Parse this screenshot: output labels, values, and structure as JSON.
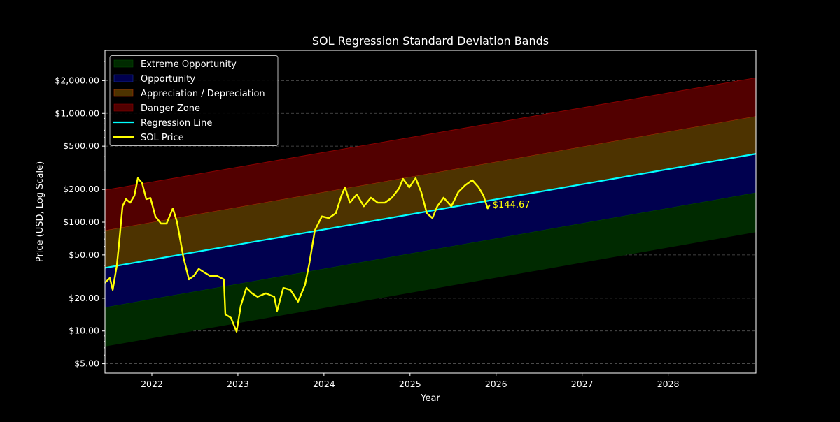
{
  "chart_data": {
    "type": "line",
    "title": "SOL Regression Standard Deviation Bands",
    "xlabel": "Year",
    "ylabel": "Price (USD, Log Scale)",
    "yscale": "log",
    "xlim": [
      2021.455,
      2029.02
    ],
    "ylim": [
      4.1,
      3800
    ],
    "grid": "horizontal dashed at major y ticks",
    "x_ticks": [
      {
        "value": 2022,
        "label": "2022"
      },
      {
        "value": 2023,
        "label": "2023"
      },
      {
        "value": 2024,
        "label": "2024"
      },
      {
        "value": 2025,
        "label": "2025"
      },
      {
        "value": 2026,
        "label": "2026"
      },
      {
        "value": 2027,
        "label": "2027"
      },
      {
        "value": 2028,
        "label": "2028"
      }
    ],
    "y_ticks": [
      {
        "value": 5,
        "label": "$5.00"
      },
      {
        "value": 10,
        "label": "$10.00"
      },
      {
        "value": 20,
        "label": "$20.00"
      },
      {
        "value": 50,
        "label": "$50.00"
      },
      {
        "value": 100,
        "label": "$100.00"
      },
      {
        "value": 200,
        "label": "$200.00"
      },
      {
        "value": 500,
        "label": "$500.00"
      },
      {
        "value": 1000,
        "label": "$1,000.00"
      },
      {
        "value": 2000,
        "label": "$2,000.00"
      }
    ],
    "legend_placement": "upper-left",
    "regression": {
      "name": "Regression Line",
      "color": "#00ffff",
      "x": [
        2021.455,
        2029.02
      ],
      "y": [
        38,
        425
      ]
    },
    "bands": [
      {
        "name": "Extreme Opportunity",
        "fill": "#002a00",
        "edge": "#004a00",
        "lower": [
          7.2,
          81
        ],
        "upper": [
          16.5,
          187
        ]
      },
      {
        "name": "Opportunity",
        "fill": "#00004f",
        "edge": "#1a3399",
        "lower": [
          16.5,
          187
        ],
        "upper": [
          38,
          425
        ]
      },
      {
        "name": "Appreciation / Depreciation",
        "fill": "#4d3300",
        "edge": "#b03000",
        "lower": [
          38,
          425
        ],
        "upper": [
          84,
          943
        ]
      },
      {
        "name": "Danger Zone",
        "fill": "#520000",
        "edge": "#8a0000",
        "lower": [
          84,
          943
        ],
        "upper": [
          197,
          2125
        ]
      }
    ],
    "series": [
      {
        "name": "SOL Price",
        "color": "#ffff00",
        "x": [
          2021.455,
          2021.512,
          2021.545,
          2021.593,
          2021.618,
          2021.659,
          2021.699,
          2021.748,
          2021.797,
          2021.837,
          2021.886,
          2021.935,
          2021.984,
          2022.041,
          2022.106,
          2022.171,
          2022.244,
          2022.293,
          2022.366,
          2022.431,
          2022.488,
          2022.545,
          2022.61,
          2022.675,
          2022.756,
          2022.837,
          2022.854,
          2022.919,
          2022.984,
          2023.033,
          2023.098,
          2023.163,
          2023.228,
          2023.325,
          2023.423,
          2023.455,
          2023.528,
          2023.61,
          2023.699,
          2023.78,
          2023.829,
          2023.894,
          2023.976,
          2024.057,
          2024.138,
          2024.203,
          2024.244,
          2024.301,
          2024.382,
          2024.463,
          2024.545,
          2024.626,
          2024.707,
          2024.789,
          2024.87,
          2024.919,
          2024.992,
          2025.065,
          2025.13,
          2025.195,
          2025.26,
          2025.317,
          2025.39,
          2025.48,
          2025.561,
          2025.642,
          2025.724,
          2025.797,
          2025.854,
          2025.902,
          2025.927
        ],
        "y": [
          27.7,
          30.7,
          23.9,
          40.1,
          62.3,
          140,
          163,
          151,
          175,
          254,
          229,
          163,
          167,
          113,
          97.1,
          97.1,
          134,
          100,
          47.8,
          29.8,
          32.1,
          37.2,
          34.5,
          32.1,
          32.1,
          29.8,
          14.2,
          13.2,
          9.86,
          17.0,
          24.9,
          22.2,
          20.6,
          22.2,
          20.6,
          15.3,
          24.9,
          23.9,
          18.6,
          26.5,
          41.2,
          83.8,
          113,
          109,
          121,
          175,
          209,
          151,
          180,
          140,
          168,
          151,
          151,
          168,
          203,
          250,
          209,
          254,
          189,
          121,
          109,
          140,
          168,
          140,
          189,
          219,
          243,
          209,
          175,
          134,
          144.67
        ]
      }
    ],
    "annotations": [
      {
        "text": "$144.67",
        "x": 2025.927,
        "y": 144.67,
        "color": "#ffff00"
      }
    ]
  }
}
